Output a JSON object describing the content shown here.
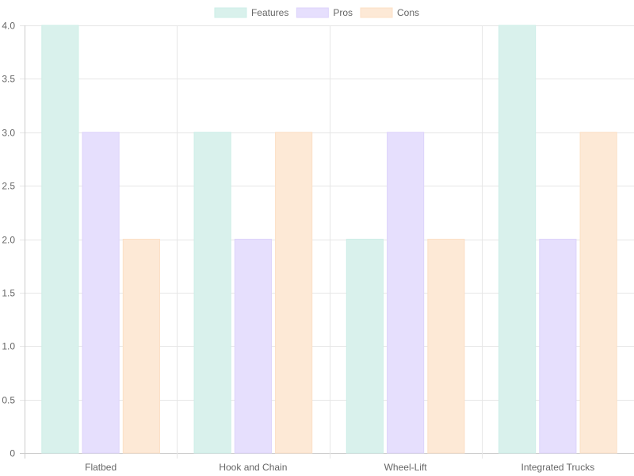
{
  "chart_data": {
    "type": "bar",
    "categories": [
      "Flatbed",
      "Hook and Chain",
      "Wheel-Lift",
      "Integrated Trucks"
    ],
    "series": [
      {
        "name": "Features",
        "values": [
          4,
          3,
          2,
          4
        ],
        "color": "#d9f1ec",
        "border_color": "#cdeee7"
      },
      {
        "name": "Pros",
        "values": [
          3,
          2,
          3,
          2
        ],
        "color": "#e6dffd",
        "border_color": "#ddd3fb"
      },
      {
        "name": "Cons",
        "values": [
          2,
          3,
          2,
          3
        ],
        "color": "#fde9d6",
        "border_color": "#fce0c6"
      }
    ],
    "ylim": [
      0,
      4
    ],
    "y_ticks": [
      "0",
      "0.5",
      "1.0",
      "1.5",
      "2.0",
      "2.5",
      "3.0",
      "3.5",
      "4.0"
    ],
    "grid": true,
    "legend_position": "top-center"
  }
}
